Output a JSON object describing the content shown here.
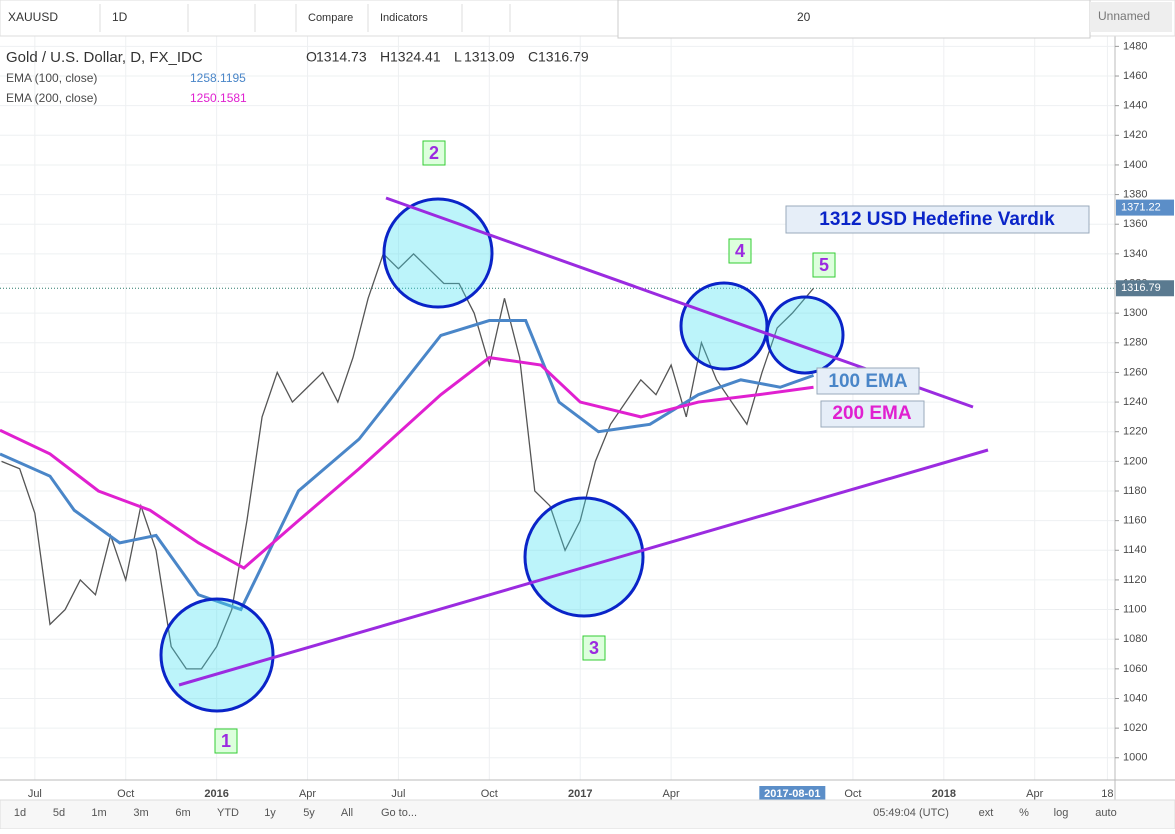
{
  "toolbar": {
    "symbol": "XAUUSD",
    "interval": "1D",
    "compare": "Compare",
    "indicators": "Indicators",
    "size": "20",
    "layout": "Unnamed"
  },
  "legend": {
    "title": "Gold / U.S. Dollar, D, FX_IDC",
    "ohlc": [
      {
        "key": "O",
        "value": "1314.73"
      },
      {
        "key": "H",
        "value": "1324.41"
      },
      {
        "key": "L",
        "value": "1313.09"
      },
      {
        "key": "C",
        "value": "1316.79"
      }
    ],
    "studies": [
      {
        "name": "EMA (100, close)",
        "value": "1258.1195"
      },
      {
        "name": "EMA (200, close)",
        "value": "1250.1581"
      }
    ]
  },
  "chart_data": {
    "type": "line",
    "ylim": [
      985,
      1487
    ],
    "yticks": [
      1000,
      1020,
      1040,
      1060,
      1080,
      1100,
      1120,
      1140,
      1160,
      1180,
      1200,
      1220,
      1240,
      1260,
      1280,
      1300,
      1320,
      1340,
      1360,
      1380,
      1400,
      1420,
      1440,
      1460,
      1480
    ],
    "xlim": [
      -1.15,
      35.65
    ],
    "xticks": [
      {
        "value": 0,
        "label": "Jul"
      },
      {
        "value": 3,
        "label": "Oct"
      },
      {
        "value": 6,
        "label": "2016"
      },
      {
        "value": 9,
        "label": "Apr"
      },
      {
        "value": 12,
        "label": "Jul"
      },
      {
        "value": 15,
        "label": "Oct"
      },
      {
        "value": 18,
        "label": "2017"
      },
      {
        "value": 21,
        "label": "Apr"
      },
      {
        "value": 27,
        "label": "Oct"
      },
      {
        "value": 30,
        "label": "2018"
      },
      {
        "value": 33,
        "label": "Apr"
      },
      {
        "value": 35.4,
        "label": "18"
      }
    ],
    "series": [
      {
        "color": "#555555",
        "x": [
          -1.1,
          -0.5,
          0,
          0.5,
          1,
          1.5,
          2,
          2.5,
          3,
          3.5,
          4,
          4.5,
          5,
          5.5,
          6,
          6.5,
          7,
          7.5,
          8,
          8.5,
          9,
          9.5,
          10,
          10.5,
          11,
          11.5,
          12,
          12.5,
          13,
          13.5,
          14,
          14.5,
          15,
          15.5,
          16,
          16.5,
          17,
          17.5,
          18,
          18.5,
          19,
          19.5,
          20,
          20.5,
          21,
          21.5,
          22,
          22.5,
          23,
          23.5,
          24,
          24.5,
          25,
          25.7
        ],
        "values": [
          1200,
          1195,
          1165,
          1090,
          1100,
          1120,
          1110,
          1150,
          1120,
          1170,
          1140,
          1075,
          1060,
          1060,
          1075,
          1100,
          1160,
          1230,
          1260,
          1240,
          1250,
          1260,
          1240,
          1270,
          1310,
          1340,
          1330,
          1340,
          1330,
          1320,
          1320,
          1300,
          1265,
          1310,
          1270,
          1180,
          1170,
          1140,
          1160,
          1200,
          1225,
          1240,
          1255,
          1245,
          1265,
          1230,
          1280,
          1255,
          1240,
          1225,
          1260,
          1290,
          1300,
          1316.79
        ]
      },
      {
        "name": "100 EMA",
        "color": "#4a86c8",
        "x": [
          -1.15,
          0.5,
          1.3,
          2.8,
          4,
          5.4,
          6.8,
          8.7,
          10.7,
          13.4,
          15,
          16.2,
          17.3,
          18.6,
          20.3,
          21.9,
          23.3,
          24.6,
          25.7
        ],
        "values": [
          1205,
          1190,
          1167,
          1145,
          1150,
          1110,
          1100,
          1180,
          1215,
          1285,
          1295,
          1295,
          1240,
          1220,
          1225,
          1245,
          1255,
          1250,
          1258
        ]
      },
      {
        "name": "200 EMA",
        "color": "#e020d0",
        "x": [
          -1.15,
          0.5,
          2.1,
          3.8,
          5.4,
          6.9,
          8.7,
          10.7,
          13.4,
          15,
          16.7,
          18,
          20,
          21.9,
          23.9,
          25.7
        ],
        "values": [
          1221,
          1205,
          1180,
          1167,
          1145,
          1128,
          1160,
          1195,
          1245,
          1270,
          1265,
          1240,
          1230,
          1240,
          1245,
          1250
        ]
      }
    ],
    "price_tags": [
      {
        "value": 1371.22,
        "label": "1371.22"
      },
      {
        "value": 1316.79,
        "label": "1316.79"
      }
    ],
    "date_tag": {
      "value": 25,
      "label": "2017-08-01"
    },
    "annotations": {
      "headline": "1312 USD Hedefine Vardık",
      "waves": [
        "1",
        "2",
        "3",
        "4",
        "5"
      ]
    }
  },
  "bottom_bar": {
    "ranges": [
      "1d",
      "5d",
      "1m",
      "3m",
      "6m",
      "YTD",
      "1y",
      "5y",
      "All",
      "Go to..."
    ],
    "clock": "05:49:04 (UTC)",
    "options": [
      "ext",
      "%",
      "log",
      "auto"
    ]
  }
}
